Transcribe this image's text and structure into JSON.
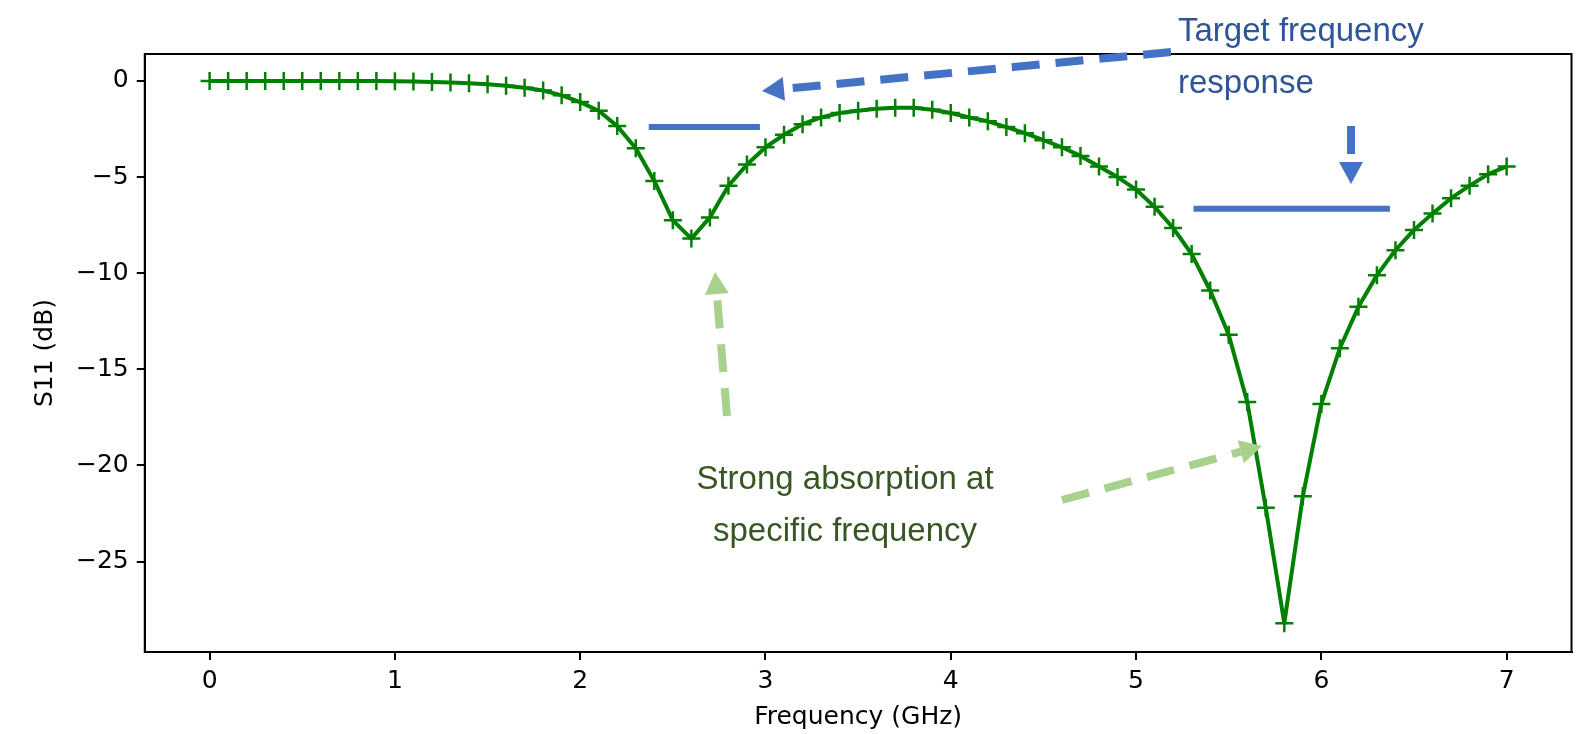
{
  "chart_data": {
    "type": "line",
    "xlabel": "Frequency (GHz)",
    "ylabel": "S11 (dB)",
    "xlim": [
      -0.35,
      7.35
    ],
    "xticks": [
      0,
      1,
      2,
      3,
      4,
      5,
      6,
      7
    ],
    "ylim": [
      -29.7,
      1.4
    ],
    "yticks": [
      {
        "value": -25,
        "label": "−25"
      },
      {
        "value": -20,
        "label": "−20"
      },
      {
        "value": -15,
        "label": "−15"
      },
      {
        "value": -10,
        "label": "−10"
      },
      {
        "value": -5,
        "label": "−5"
      },
      0
    ],
    "grid": false,
    "legend": false,
    "marker": "cross",
    "line_style": "solid",
    "series": [
      {
        "color": "#008000",
        "x": [
          0,
          0.1,
          0.2,
          0.3,
          0.4,
          0.5,
          0.6,
          0.7,
          0.8,
          0.9,
          1,
          1.1,
          1.2,
          1.3,
          1.4,
          1.5,
          1.6,
          1.7,
          1.8,
          1.9,
          2,
          2.1,
          2.2,
          2.3,
          2.4,
          2.5,
          2.6,
          2.7,
          2.8,
          2.9,
          3,
          3.1,
          3.2,
          3.3,
          3.4,
          3.5,
          3.6,
          3.7,
          3.8,
          3.9,
          4,
          4.1,
          4.2,
          4.3,
          4.4,
          4.5,
          4.6,
          4.7,
          4.8,
          4.9,
          5,
          5.1,
          5.2,
          5.3,
          5.4,
          5.5,
          5.6,
          5.7,
          5.8,
          5.9,
          6,
          6.1,
          6.2,
          6.3,
          6.4,
          6.5,
          6.6,
          6.7,
          6.8,
          6.9,
          7
        ],
        "values": [
          0,
          0,
          0,
          0,
          0,
          0,
          0,
          0,
          0,
          0,
          -0.02,
          -0.03,
          -0.05,
          -0.08,
          -0.12,
          -0.17,
          -0.25,
          -0.35,
          -0.5,
          -0.75,
          -1.1,
          -1.55,
          -2.35,
          -3.5,
          -5.2,
          -7.25,
          -8.2,
          -7.1,
          -5.45,
          -4.35,
          -3.45,
          -2.8,
          -2.25,
          -1.9,
          -1.67,
          -1.55,
          -1.45,
          -1.4,
          -1.4,
          -1.5,
          -1.67,
          -1.9,
          -2.1,
          -2.4,
          -2.72,
          -3.08,
          -3.45,
          -3.9,
          -4.45,
          -5.0,
          -5.65,
          -6.55,
          -7.65,
          -9.0,
          -10.9,
          -13.2,
          -16.7,
          -22.2,
          -28.2,
          -21.6,
          -16.8,
          -13.9,
          -11.75,
          -10.1,
          -8.8,
          -7.75,
          -6.9,
          -6.1,
          -5.45,
          -4.85,
          -4.45
        ]
      },
      {
        "color": "#4472c4",
        "marker": "none",
        "x": [
          2.37,
          2.97
        ],
        "values": [
          -2.4,
          -2.4
        ]
      },
      {
        "color": "#4472c4",
        "marker": "none",
        "x": [
          5.31,
          6.37
        ],
        "values": [
          -6.65,
          -6.65
        ]
      }
    ],
    "annotations": [
      "Target frequency response",
      "Strong absorption at specific frequency"
    ]
  }
}
